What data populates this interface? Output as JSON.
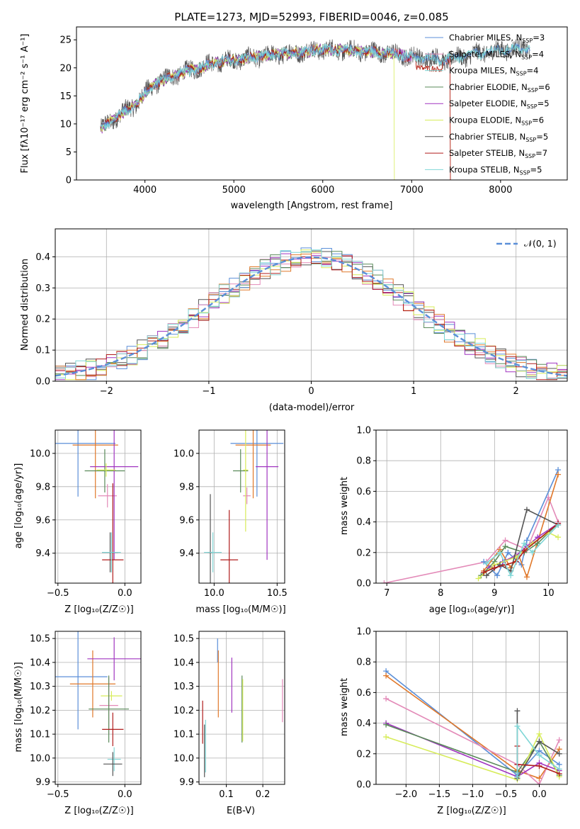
{
  "colors": {
    "blue": "#5b8fd8",
    "orange": "#e0782a",
    "pink": "#e38ab8",
    "green": "#5a8a5a",
    "purple": "#a135c0",
    "yellow": "#d7ec5a",
    "gray": "#555555",
    "red": "#b01c1c",
    "cyan": "#7fd6d6",
    "grid": "#b0b0b0"
  },
  "chart_data": [
    {
      "id": "spectrum",
      "type": "line",
      "title": "PLATE=1273, MJD=52993, FIBERID=0046, z=0.085",
      "xlabel": "wavelength [Angstrom, rest frame]",
      "ylabel": "Flux [fλ10⁻¹⁷ erg cm⁻² s⁻¹ A⁻¹]",
      "xlim": [
        3230,
        8750
      ],
      "ylim": [
        0,
        27.3
      ],
      "xticks": [
        4000,
        5000,
        6000,
        7000,
        8000
      ],
      "yticks": [
        0,
        5,
        10,
        15,
        20,
        25
      ],
      "grid": false,
      "legend_position": "top-right",
      "legend": [
        {
          "label": "Chabrier MILES, N",
          "sub": "SSP",
          "tail": "=3"
        },
        {
          "label": "Salpeter MILES, N",
          "sub": "SSP",
          "tail": "=4"
        },
        {
          "label": "Kroupa MILES, N",
          "sub": "SSP",
          "tail": "=4"
        },
        {
          "label": "Chabrier ELODIE, N",
          "sub": "SSP",
          "tail": "=6"
        },
        {
          "label": "Salpeter ELODIE, N",
          "sub": "SSP",
          "tail": "=5"
        },
        {
          "label": "Kroupa ELODIE, N",
          "sub": "SSP",
          "tail": "=6"
        },
        {
          "label": "Chabrier STELIB, N",
          "sub": "SSP",
          "tail": "=5"
        },
        {
          "label": "Salpeter STELIB, N",
          "sub": "SSP",
          "tail": "=7"
        },
        {
          "label": "Kroupa STELIB, N",
          "sub": "SSP",
          "tail": "=5"
        }
      ],
      "series_colors": [
        "blue",
        "pink",
        "cyan",
        "green",
        "purple",
        "yellow",
        "gray",
        "red",
        "cyan"
      ],
      "continuum": [
        [
          3500,
          9
        ],
        [
          3700,
          11.5
        ],
        [
          3900,
          13.5
        ],
        [
          4000,
          15.5
        ],
        [
          4100,
          17
        ],
        [
          4300,
          18.5
        ],
        [
          4500,
          19.5
        ],
        [
          4700,
          20.5
        ],
        [
          4900,
          21.2
        ],
        [
          5200,
          21.8
        ],
        [
          5600,
          22.6
        ],
        [
          6000,
          23.3
        ],
        [
          6400,
          23
        ],
        [
          6700,
          22.7
        ],
        [
          6900,
          22.2
        ],
        [
          7100,
          21.8
        ],
        [
          7400,
          21.5
        ],
        [
          7700,
          22.4
        ],
        [
          8000,
          23.2
        ],
        [
          8300,
          23.5
        ]
      ],
      "data_range": [
        3500,
        8330
      ],
      "model_cut": [
        {
          "name": "yellow",
          "x": 6800
        },
        {
          "name": "orange",
          "x": 7430
        },
        {
          "name": "red",
          "x": 7430
        }
      ]
    },
    {
      "id": "residuals",
      "type": "line",
      "xlabel": "(data-model)/error",
      "ylabel": "Normed distribution",
      "xlim": [
        -2.5,
        2.5
      ],
      "ylim": [
        0,
        0.49
      ],
      "xticks": [
        -2,
        -1,
        0,
        1,
        2
      ],
      "yticks": [
        0.0,
        0.1,
        0.2,
        0.3,
        0.4
      ],
      "grid": true,
      "legend_position": "top-right",
      "legend": [
        {
          "label": "𝒩(0, 1)"
        }
      ],
      "bin_width": 0.1
    },
    {
      "id": "age-vs-Z",
      "type": "scatter",
      "xlabel": "Z [log₁₀(Z/Z☉)]",
      "ylabel": "age  [log₁₀(age/yr)]",
      "xlim": [
        -0.52,
        0.12
      ],
      "ylim": [
        9.22,
        10.14
      ],
      "xticks": [
        -0.5,
        0.0
      ],
      "yticks": [
        9.4,
        9.6,
        9.8,
        10.0
      ],
      "grid": true,
      "points": [
        {
          "c": "blue",
          "x": -0.35,
          "y": 10.06,
          "xe": 0.28,
          "ye": 0.32
        },
        {
          "c": "orange",
          "x": -0.22,
          "y": 10.05,
          "xe": 0.17,
          "ye": 0.32
        },
        {
          "c": "pink",
          "x": -0.13,
          "y": 9.745,
          "xe": 0.07,
          "ye": 0.07
        },
        {
          "c": "green",
          "x": -0.15,
          "y": 9.895,
          "xe": 0.15,
          "ye": 0.13
        },
        {
          "c": "purple",
          "x": -0.08,
          "y": 9.92,
          "xe": 0.18,
          "ye": 0.56
        },
        {
          "c": "yellow",
          "x": -0.14,
          "y": 9.9,
          "xe": 0.07,
          "ye": 0.04
        },
        {
          "c": "gray",
          "x": -0.11,
          "y": 9.405,
          "xe": 0.06,
          "ye": 0.12
        },
        {
          "c": "red",
          "x": -0.09,
          "y": 9.36,
          "xe": 0.08,
          "ye": 0.46
        },
        {
          "c": "cyan",
          "x": -0.1,
          "y": 9.405,
          "xe": 0.07,
          "ye": 0.12
        }
      ]
    },
    {
      "id": "age-vs-mass",
      "type": "scatter",
      "xlabel": "mass [log₁₀(M/M☉)]",
      "ylabel": "",
      "xlim": [
        9.88,
        10.56
      ],
      "ylim": [
        9.22,
        10.14
      ],
      "xticks": [
        10.0,
        10.5
      ],
      "yticks": [
        9.4,
        9.6,
        9.8,
        10.0
      ],
      "grid": true,
      "points": [
        {
          "c": "blue",
          "x": 10.34,
          "y": 10.06,
          "xe": 0.21,
          "ye": 0.32
        },
        {
          "c": "orange",
          "x": 10.31,
          "y": 10.05,
          "xe": 0.14,
          "ye": 0.32
        },
        {
          "c": "pink",
          "x": 10.26,
          "y": 9.745,
          "xe": 0.03,
          "ye": 0.05
        },
        {
          "c": "green",
          "x": 10.21,
          "y": 9.895,
          "xe": 0.06,
          "ye": 0.13
        },
        {
          "c": "purple",
          "x": 10.42,
          "y": 9.92,
          "xe": 0.09,
          "ye": 0.56
        },
        {
          "c": "yellow",
          "x": 10.25,
          "y": 9.9,
          "xe": 0.02,
          "ye": 0.37
        },
        {
          "c": "gray",
          "x": 9.97,
          "y": 9.405,
          "xe": 0.02,
          "ye": 0.35
        },
        {
          "c": "red",
          "x": 10.12,
          "y": 9.36,
          "xe": 0.07,
          "ye": 0.3
        },
        {
          "c": "cyan",
          "x": 9.99,
          "y": 9.405,
          "xe": 0.07,
          "ye": 0.12
        }
      ]
    },
    {
      "id": "mw-vs-age",
      "type": "line",
      "xlabel": "age  [log₁₀(age/yr)]",
      "ylabel": "mass weight",
      "xlim": [
        6.8,
        10.35
      ],
      "ylim": [
        0,
        1.0
      ],
      "xticks": [
        7,
        8,
        9,
        10
      ],
      "yticks": [
        0.0,
        0.2,
        0.4,
        0.6,
        0.8,
        1.0
      ],
      "grid": true,
      "series": [
        {
          "c": "pink",
          "x": [
            6.95,
            8.85,
            9.2,
            9.6,
            10.0,
            10.18
          ],
          "y": [
            0.0,
            0.14,
            0.28,
            0.22,
            0.56,
            0.4
          ]
        },
        {
          "c": "blue",
          "x": [
            8.8,
            9.05,
            9.25,
            9.5,
            9.6,
            10.18
          ],
          "y": [
            0.14,
            0.05,
            0.2,
            0.12,
            0.28,
            0.74
          ]
        },
        {
          "c": "orange",
          "x": [
            8.8,
            9.1,
            9.3,
            9.45,
            9.6,
            10.18
          ],
          "y": [
            0.08,
            0.22,
            0.1,
            0.18,
            0.04,
            0.71
          ]
        },
        {
          "c": "green",
          "x": [
            8.75,
            9.0,
            9.2,
            9.55,
            9.8,
            10.18
          ],
          "y": [
            0.05,
            0.14,
            0.24,
            0.2,
            0.26,
            0.39
          ]
        },
        {
          "c": "purple",
          "x": [
            8.9,
            9.15,
            9.4,
            9.6,
            9.8,
            10.18
          ],
          "y": [
            0.1,
            0.14,
            0.18,
            0.24,
            0.3,
            0.39
          ]
        },
        {
          "c": "yellow",
          "x": [
            8.7,
            9.0,
            9.4,
            9.7,
            10.0,
            10.18
          ],
          "y": [
            0.03,
            0.12,
            0.17,
            0.26,
            0.33,
            0.3
          ]
        },
        {
          "c": "gray",
          "x": [
            8.85,
            9.1,
            9.3,
            9.6,
            10.18
          ],
          "y": [
            0.05,
            0.12,
            0.08,
            0.48,
            0.38
          ]
        },
        {
          "c": "red",
          "x": [
            8.8,
            9.0,
            9.2,
            9.4,
            9.55,
            10.18
          ],
          "y": [
            0.07,
            0.1,
            0.12,
            0.14,
            0.21,
            0.39
          ]
        },
        {
          "c": "cyan",
          "x": [
            8.85,
            9.1,
            9.3,
            9.55,
            9.7,
            10.18
          ],
          "y": [
            0.13,
            0.2,
            0.05,
            0.26,
            0.2,
            0.38
          ]
        }
      ]
    },
    {
      "id": "mass-vs-Z",
      "type": "scatter",
      "xlabel": "Z [log₁₀(Z/Z☉)]",
      "ylabel": "mass [log₁₀(M/M☉)]",
      "xlim": [
        -0.52,
        0.12
      ],
      "ylim": [
        9.89,
        10.53
      ],
      "xticks": [
        -0.5,
        0.0
      ],
      "yticks": [
        9.9,
        10.0,
        10.1,
        10.2,
        10.3,
        10.4,
        10.5
      ],
      "grid": true,
      "points": [
        {
          "c": "blue",
          "x": -0.35,
          "y": 10.34,
          "xe": 0.22,
          "ye": 0.22
        },
        {
          "c": "orange",
          "x": -0.24,
          "y": 10.31,
          "xe": 0.17,
          "ye": 0.14
        },
        {
          "c": "purple",
          "x": -0.08,
          "y": 10.415,
          "xe": 0.2,
          "ye": 0.09
        },
        {
          "c": "yellow",
          "x": -0.1,
          "y": 10.26,
          "xe": 0.08,
          "ye": 0.02
        },
        {
          "c": "pink",
          "x": -0.12,
          "y": 10.22,
          "xe": 0.07,
          "ye": 0.12
        },
        {
          "c": "green",
          "x": -0.12,
          "y": 10.205,
          "xe": 0.15,
          "ye": 0.14
        },
        {
          "c": "red",
          "x": -0.09,
          "y": 10.12,
          "xe": 0.08,
          "ye": 0.07
        },
        {
          "c": "cyan",
          "x": -0.08,
          "y": 9.995,
          "xe": 0.05,
          "ye": 0.05
        },
        {
          "c": "gray",
          "x": -0.09,
          "y": 9.975,
          "xe": 0.07,
          "ye": 0.05
        }
      ]
    },
    {
      "id": "mass-vs-EBV",
      "type": "scatter",
      "xlabel": "E(B-V)",
      "ylabel": "",
      "xlim": [
        0.025,
        0.26
      ],
      "ylim": [
        9.89,
        10.53
      ],
      "xticks": [
        0.1,
        0.2
      ],
      "yticks": [
        9.9,
        10.0,
        10.1,
        10.2,
        10.3,
        10.4,
        10.5
      ],
      "grid": true,
      "points": [
        {
          "c": "red",
          "x": 0.035,
          "y": 10.15,
          "xe": 0,
          "ye": 0.09
        },
        {
          "c": "gray",
          "x": 0.04,
          "y": 10.03,
          "xe": 0,
          "ye": 0.11
        },
        {
          "c": "cyan",
          "x": 0.043,
          "y": 10.05,
          "xe": 0,
          "ye": 0.11
        },
        {
          "c": "blue",
          "x": 0.076,
          "y": 10.45,
          "xe": 0,
          "ye": 0.05
        },
        {
          "c": "orange",
          "x": 0.078,
          "y": 10.31,
          "xe": 0,
          "ye": 0.14
        },
        {
          "c": "purple",
          "x": 0.115,
          "y": 10.305,
          "xe": 0,
          "ye": 0.115
        },
        {
          "c": "green",
          "x": 0.143,
          "y": 10.205,
          "xe": 0,
          "ye": 0.14
        },
        {
          "c": "yellow",
          "x": 0.145,
          "y": 10.2,
          "xe": 0,
          "ye": 0.13
        },
        {
          "c": "pink",
          "x": 0.254,
          "y": 10.24,
          "xe": 0,
          "ye": 0.09
        }
      ]
    },
    {
      "id": "mw-vs-Z",
      "type": "line",
      "xlabel": "Z [log₁₀(Z/Z☉)]",
      "ylabel": "mass weight",
      "xlim": [
        -2.45,
        0.42
      ],
      "ylim": [
        0,
        1.0
      ],
      "xticks": [
        -2.0,
        -1.5,
        -1.0,
        -0.5,
        0.0
      ],
      "yticks": [
        0.0,
        0.2,
        0.4,
        0.6,
        0.8,
        1.0
      ],
      "grid": true,
      "series": [
        {
          "c": "blue",
          "x": [
            -2.3,
            -0.33,
            0.0,
            0.3
          ],
          "y": [
            0.74,
            0.06,
            0.22,
            0.13
          ]
        },
        {
          "c": "orange",
          "x": [
            -2.3,
            -0.33,
            0.0,
            0.3
          ],
          "y": [
            0.71,
            0.09,
            0.04,
            0.23
          ]
        },
        {
          "c": "pink",
          "x": [
            -2.3,
            -0.33,
            0.0,
            0.3
          ],
          "y": [
            0.56,
            0.13,
            0.0,
            0.29
          ]
        },
        {
          "c": "purple",
          "x": [
            -2.3,
            -0.33,
            0.0,
            0.3
          ],
          "y": [
            0.4,
            0.05,
            0.14,
            0.09
          ]
        },
        {
          "c": "green",
          "x": [
            -2.3,
            -0.33,
            0.0,
            0.3
          ],
          "y": [
            0.39,
            0.08,
            0.28,
            0.06
          ]
        },
        {
          "c": "yellow",
          "x": [
            -2.3,
            -0.33,
            0.0,
            0.3
          ],
          "y": [
            0.31,
            0.03,
            0.33,
            0.05
          ]
        },
        {
          "c": "gray",
          "x": [
            -0.33,
            -0.33,
            0.0,
            0.3
          ],
          "y": [
            0.48,
            0.04,
            0.28,
            0.2
          ]
        },
        {
          "c": "red",
          "x": [
            -0.33,
            -0.33,
            0.0,
            0.3
          ],
          "y": [
            0.25,
            0.13,
            0.12,
            0.07
          ]
        },
        {
          "c": "cyan",
          "x": [
            -0.33,
            -0.33,
            0.0,
            0.3
          ],
          "y": [
            0.05,
            0.38,
            0.19,
            0.1
          ]
        }
      ]
    }
  ]
}
